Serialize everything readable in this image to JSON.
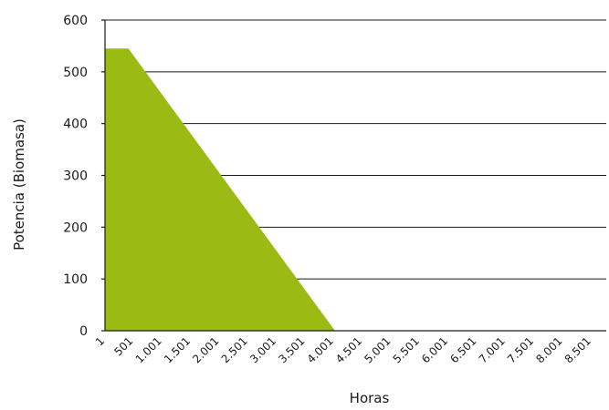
{
  "chart_data": {
    "type": "area",
    "xlabel": "Horas",
    "ylabel": "Potencia (Biomasa)",
    "ylim": [
      0,
      600
    ],
    "yticks": [
      "0",
      "100",
      "200",
      "300",
      "400",
      "500",
      "600"
    ],
    "xlim": [
      1,
      8760
    ],
    "xticks": [
      {
        "value": 1,
        "label": "1"
      },
      {
        "value": 501,
        "label": "501"
      },
      {
        "value": 1001,
        "label": "1.001"
      },
      {
        "value": 1501,
        "label": "1.501"
      },
      {
        "value": 2001,
        "label": "2.001"
      },
      {
        "value": 2501,
        "label": "2.501"
      },
      {
        "value": 3001,
        "label": "3.001"
      },
      {
        "value": 3501,
        "label": "3.501"
      },
      {
        "value": 4001,
        "label": "4.001"
      },
      {
        "value": 4501,
        "label": "4.501"
      },
      {
        "value": 5001,
        "label": "5.001"
      },
      {
        "value": 5501,
        "label": "5.501"
      },
      {
        "value": 6001,
        "label": "6.001"
      },
      {
        "value": 6501,
        "label": "6.501"
      },
      {
        "value": 7001,
        "label": "7.001"
      },
      {
        "value": 7501,
        "label": "7.501"
      },
      {
        "value": 8001,
        "label": "8.001"
      },
      {
        "value": 8501,
        "label": "8.501"
      }
    ],
    "grid": "horizontal",
    "legend": "none",
    "color": "#9bbb14",
    "series": [
      {
        "x": [
          1,
          410,
          4020,
          4020
        ],
        "y": [
          545,
          545,
          0,
          0
        ]
      }
    ]
  }
}
